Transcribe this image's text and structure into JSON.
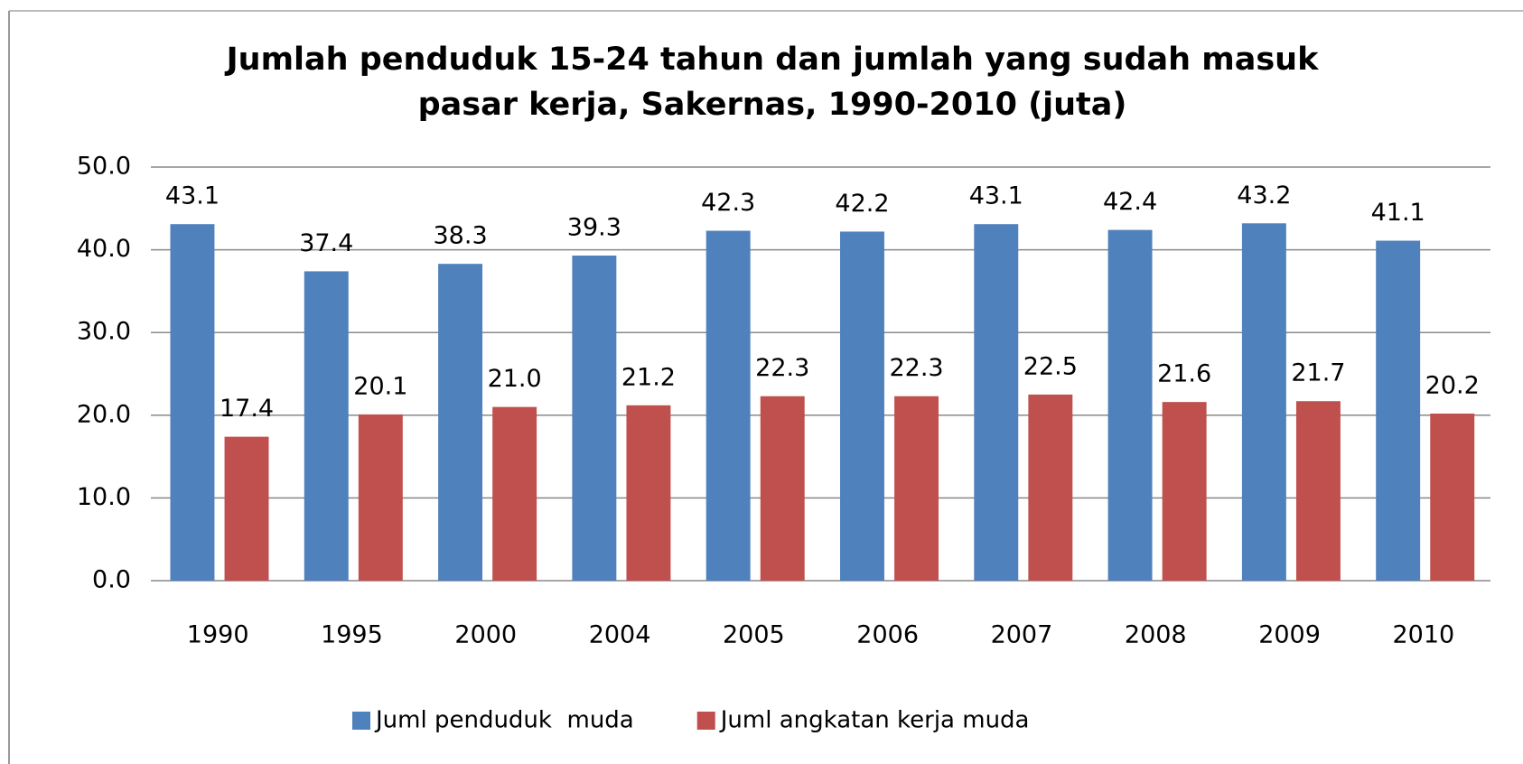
{
  "chart_data": {
    "type": "bar",
    "title": [
      "Jumlah penduduk 15-24 tahun dan jumlah yang sudah masuk",
      "pasar kerja, Sakernas, 1990-2010 (juta)"
    ],
    "categories": [
      "1990",
      "1995",
      "2000",
      "2004",
      "2005",
      "2006",
      "2007",
      "2008",
      "2009",
      "2010"
    ],
    "series": [
      {
        "name": "Juml penduduk  muda",
        "color": "#4f81bd",
        "values": [
          43.1,
          37.4,
          38.3,
          39.3,
          42.3,
          42.2,
          43.1,
          42.4,
          43.2,
          41.1
        ]
      },
      {
        "name": "Juml angkatan kerja muda",
        "color": "#c0504d",
        "values": [
          17.4,
          20.1,
          21.0,
          21.2,
          22.3,
          22.3,
          22.5,
          21.6,
          21.7,
          20.2
        ],
        "value_labels": [
          "17.4",
          "20.1",
          "21.0",
          "21.2",
          "22.3",
          "22.3",
          "22.5",
          "21.6",
          "21.7",
          "20.2"
        ]
      }
    ],
    "ylim": [
      0,
      50
    ],
    "yticks": [
      {
        "value": 0,
        "label": "0.0"
      },
      {
        "value": 10,
        "label": "10.0"
      },
      {
        "value": 20,
        "label": "20.0"
      },
      {
        "value": 30,
        "label": "30.0"
      },
      {
        "value": 40,
        "label": "40.0"
      },
      {
        "value": 50,
        "label": "50.0"
      }
    ],
    "grid": true,
    "legend": "bottom"
  }
}
